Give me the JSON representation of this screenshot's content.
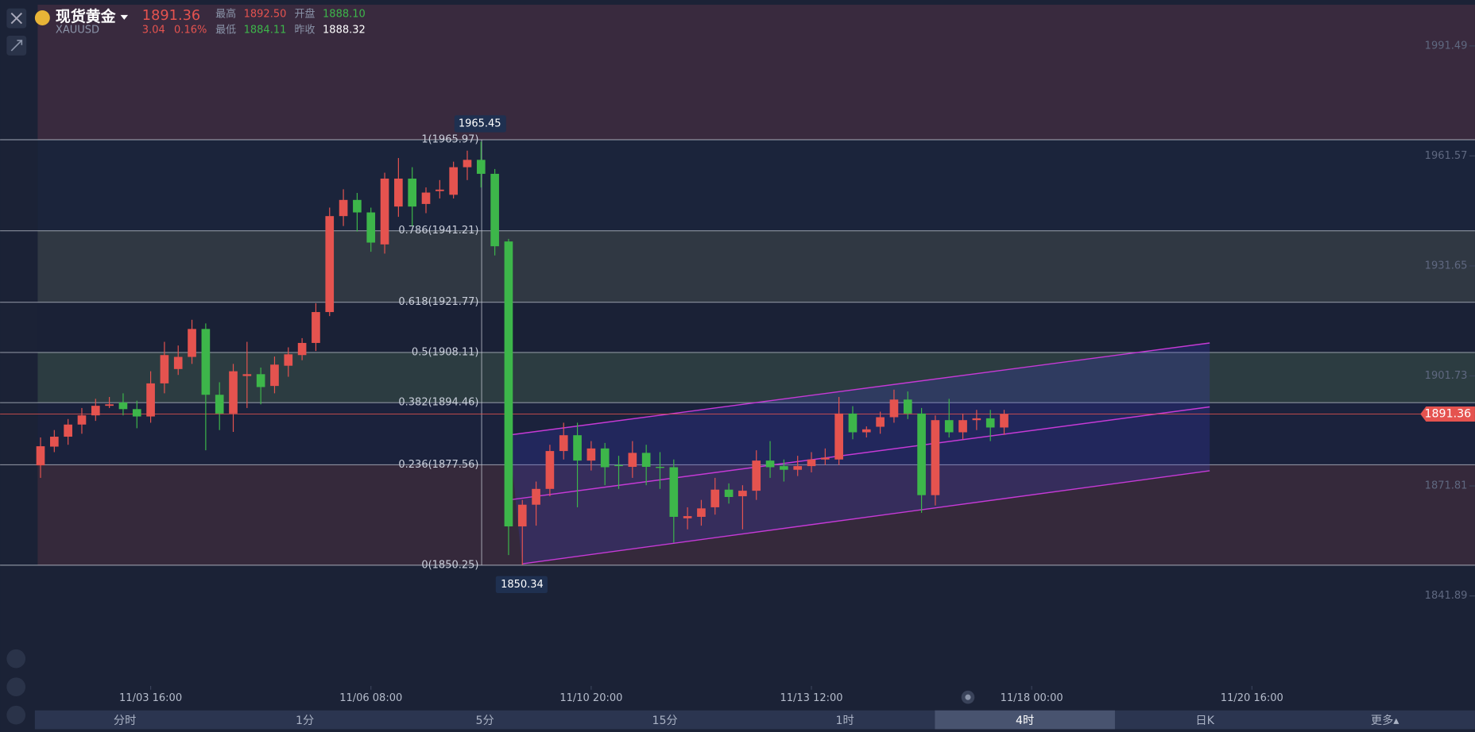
{
  "header": {
    "name": "现货黄金",
    "symbol": "XAUUSD",
    "price": "1891.36",
    "change": "3.04",
    "change_pct": "0.16%",
    "stats": [
      {
        "label": "最高",
        "value": "1892.50"
      },
      {
        "label": "开盘",
        "value": "1888.10"
      },
      {
        "label": "最低",
        "value": "1884.11"
      },
      {
        "label": "昨收",
        "value": "1888.32"
      }
    ]
  },
  "tabs": [
    "分时",
    "1分",
    "5分",
    "15分",
    "1时",
    "4时",
    "日K",
    "更多▴"
  ],
  "active_tab": 5,
  "chart_data": {
    "type": "candlestick",
    "x": [
      0,
      1,
      2,
      3,
      4,
      5,
      6,
      7,
      8,
      9,
      10,
      11,
      12,
      13,
      14,
      15,
      16,
      17,
      18,
      19,
      20,
      21,
      22,
      23,
      24,
      25,
      26,
      27,
      28,
      29,
      30,
      31,
      32,
      33,
      34,
      35,
      36,
      37,
      38,
      39,
      40,
      41,
      42,
      43,
      44,
      45,
      46,
      47,
      48,
      49,
      50,
      51,
      52,
      53,
      54,
      55,
      56,
      57,
      58,
      59,
      60,
      61,
      62,
      63,
      64,
      65,
      66,
      67,
      68,
      69,
      70
    ],
    "open": [
      1877.4,
      1882.5,
      1885.2,
      1888.5,
      1891,
      1893.6,
      1894.5,
      1892.7,
      1890.7,
      1899.7,
      1903.6,
      1906.9,
      1914.5,
      1896.6,
      1891.5,
      1901.7,
      1902.2,
      1899,
      1904.5,
      1907.4,
      1910.7,
      1919.1,
      1945.2,
      1949.6,
      1946.2,
      1937.5,
      1947.8,
      1955.4,
      1948.5,
      1952,
      1951,
      1958.5,
      1960.5,
      1956.7,
      1938.3,
      1860.8,
      1866.7,
      1871,
      1881.3,
      1885.6,
      1878.7,
      1882,
      1877.5,
      1877,
      1880.8,
      1877,
      1876.9,
      1863,
      1863.4,
      1866,
      1870.8,
      1869,
      1870.5,
      1878.7,
      1877.2,
      1876.2,
      1877.2,
      1879,
      1879,
      1891.5,
      1886.4,
      1887.9,
      1890.5,
      1895.3,
      1891.5,
      1869.3,
      1889.7,
      1886.4,
      1889.7,
      1890.2,
      1887.7
    ],
    "high": [
      1885,
      1887,
      1890,
      1893,
      1895.5,
      1896,
      1897,
      1895,
      1903,
      1911,
      1910,
      1917,
      1916,
      1900,
      1905,
      1911,
      1904,
      1907,
      1909.5,
      1912,
      1921.5,
      1947.5,
      1952.5,
      1951.5,
      1947.5,
      1957,
      1961,
      1958.5,
      1953,
      1955,
      1960,
      1963,
      1965.45,
      1958,
      1939,
      1868,
      1873,
      1883,
      1889,
      1889,
      1884,
      1883.5,
      1880,
      1884,
      1883,
      1881,
      1879,
      1866,
      1868,
      1874,
      1872.5,
      1872,
      1881.5,
      1884,
      1879,
      1880,
      1881,
      1882,
      1896,
      1893.5,
      1888,
      1892,
      1898,
      1897.5,
      1893,
      1891,
      1895.5,
      1891.5,
      1892.5,
      1892.5,
      1892.5
    ],
    "low": [
      1874,
      1881,
      1883,
      1886,
      1889.5,
      1893,
      1891,
      1887.5,
      1889,
      1897,
      1902,
      1905,
      1881.5,
      1887,
      1886.5,
      1893,
      1894,
      1897,
      1901.5,
      1906,
      1908.5,
      1918,
      1942.5,
      1941,
      1935.5,
      1935,
      1945,
      1942.5,
      1946,
      1950,
      1950,
      1955,
      1953,
      1934.5,
      1853,
      1850.34,
      1861,
      1869,
      1879,
      1866,
      1876,
      1872,
      1871,
      1874,
      1872,
      1871,
      1856.4,
      1860,
      1861,
      1864,
      1867,
      1860,
      1868,
      1874,
      1873,
      1874.5,
      1875.5,
      1877.5,
      1877.5,
      1884.5,
      1885,
      1886,
      1889,
      1890,
      1864.5,
      1866.5,
      1885,
      1884.5,
      1887,
      1884,
      1885.7
    ],
    "close": [
      1882.6,
      1885.2,
      1888.5,
      1891,
      1893.6,
      1894,
      1892.7,
      1890.7,
      1899.7,
      1907.4,
      1906.9,
      1914.5,
      1896.6,
      1891.5,
      1903,
      1902.2,
      1898.7,
      1904.8,
      1907.6,
      1910.7,
      1919.1,
      1945.2,
      1949.6,
      1946.2,
      1938,
      1955.4,
      1955.4,
      1947.8,
      1951.6,
      1952.4,
      1958.5,
      1960.5,
      1956.7,
      1937,
      1860.8,
      1866.7,
      1871,
      1881.3,
      1885.6,
      1878.7,
      1882,
      1876.9,
      1877.2,
      1880.8,
      1877,
      1876.7,
      1863.4,
      1863.6,
      1865.7,
      1870.8,
      1868.8,
      1870.5,
      1878.7,
      1876.9,
      1876.2,
      1877.2,
      1879,
      1879.5,
      1891.5,
      1886.4,
      1887.2,
      1890.5,
      1895.3,
      1891.5,
      1869.3,
      1889.7,
      1886.4,
      1889.7,
      1890.2,
      1887.7,
      1891.36
    ],
    "up_color": "#e5534f",
    "down_color": "#3db64a",
    "ylim": [
      1817.4,
      2002.7
    ],
    "yticks": [
      1841.89,
      1871.81,
      1901.73,
      1931.65,
      1961.57,
      1991.49
    ],
    "xlim": [
      -2.94,
      104.2
    ],
    "xticks": [
      {
        "value": 8,
        "label": "11/03 16:00"
      },
      {
        "value": 24,
        "label": "11/06 08:00"
      },
      {
        "value": 40,
        "label": "11/10 20:00"
      },
      {
        "value": 56,
        "label": "11/13 12:00"
      },
      {
        "value": 72,
        "label": "11/18 00:00"
      },
      {
        "value": 88,
        "label": "11/20 16:00"
      }
    ],
    "fib_levels": [
      {
        "label": "1(1965.97)",
        "value": 1965.97
      },
      {
        "label": "0.786(1941.21)",
        "value": 1941.21
      },
      {
        "label": "0.618(1921.77)",
        "value": 1921.77
      },
      {
        "label": "0.5(1908.11)",
        "value": 1908.11
      },
      {
        "label": "0.382(1894.46)",
        "value": 1894.46
      },
      {
        "label": "0.236(1877.56)",
        "value": 1877.56
      },
      {
        "label": "0(1850.25)",
        "value": 1850.25
      }
    ],
    "last_price_color": "#e5534f"
  }
}
